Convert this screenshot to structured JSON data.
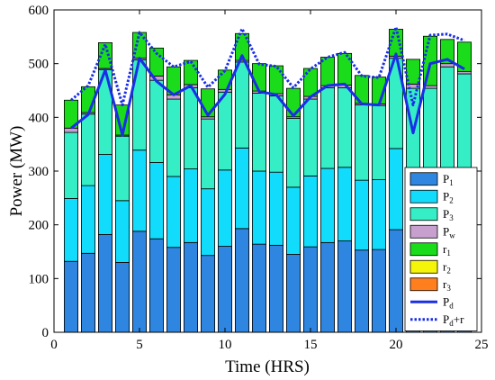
{
  "chart_data": {
    "type": "bar",
    "stacked": true,
    "xlabel": "Time (HRS)",
    "ylabel": "Power (MW)",
    "xlim": [
      0,
      25
    ],
    "ylim": [
      0,
      600
    ],
    "xticks": [
      0,
      5,
      10,
      15,
      20,
      25
    ],
    "yticks": [
      0,
      100,
      200,
      300,
      400,
      500,
      600
    ],
    "grid": false,
    "legend_position": "lower-right",
    "x": [
      1,
      2,
      3,
      4,
      5,
      6,
      7,
      8,
      9,
      10,
      11,
      12,
      13,
      14,
      15,
      16,
      17,
      18,
      19,
      20,
      21,
      22,
      23,
      24
    ],
    "series": [
      {
        "name": "P",
        "sub": "1",
        "kind": "bar",
        "color": "#2f86e0",
        "values": [
          132,
          147,
          182,
          130,
          188,
          174,
          158,
          167,
          143,
          160,
          193,
          164,
          162,
          145,
          159,
          167,
          170,
          153,
          154,
          191,
          160,
          164,
          160,
          160
        ]
      },
      {
        "name": "P",
        "sub": "2",
        "kind": "bar",
        "color": "#12dcfc",
        "values": [
          117,
          126,
          149,
          115,
          151,
          142,
          132,
          137,
          124,
          142,
          150,
          136,
          136,
          125,
          132,
          138,
          137,
          130,
          130,
          151,
          141,
          140,
          139,
          138
        ]
      },
      {
        "name": "P",
        "sub": "3",
        "kind": "bar",
        "color": "#36eec6",
        "values": [
          123,
          133,
          158,
          120,
          168,
          153,
          144,
          151,
          130,
          145,
          160,
          145,
          142,
          128,
          143,
          150,
          148,
          140,
          138,
          168,
          153,
          150,
          195,
          183
        ]
      },
      {
        "name": "P",
        "sub": "w",
        "kind": "bar",
        "color": "#c8a0d0",
        "values": [
          8,
          3,
          2,
          2,
          3,
          8,
          8,
          6,
          4,
          5,
          3,
          4,
          4,
          3,
          5,
          4,
          5,
          3,
          3,
          4,
          8,
          5,
          6,
          4
        ]
      },
      {
        "name": "r",
        "sub": "1",
        "kind": "bar",
        "color": "#1adc1a",
        "values": [
          52,
          48,
          48,
          56,
          48,
          52,
          52,
          45,
          52,
          36,
          50,
          51,
          52,
          53,
          52,
          53,
          59,
          52,
          50,
          50,
          46,
          92,
          45,
          55
        ]
      },
      {
        "name": "r",
        "sub": "2",
        "kind": "bar",
        "color": "#f5f50a",
        "values": [
          0,
          0,
          0,
          0,
          0,
          0,
          0,
          0,
          0,
          0,
          0,
          0,
          0,
          0,
          0,
          0,
          0,
          0,
          0,
          0,
          0,
          0,
          0,
          0
        ]
      },
      {
        "name": "r",
        "sub": "3",
        "kind": "bar",
        "color": "#ff7f1e",
        "values": [
          0,
          0,
          0,
          0,
          0,
          0,
          0,
          0,
          0,
          0,
          0,
          0,
          0,
          0,
          0,
          0,
          0,
          0,
          0,
          0,
          0,
          0,
          0,
          0
        ]
      },
      {
        "name": "P",
        "sub": "d",
        "kind": "line",
        "color": "#1a2ee6",
        "values": [
          380,
          405,
          488,
          367,
          510,
          467,
          442,
          459,
          404,
          443,
          515,
          448,
          442,
          403,
          438,
          459,
          462,
          425,
          423,
          518,
          371,
          500,
          508,
          490
        ]
      },
      {
        "name": "P",
        "sub": "d",
        "suffix": "+r",
        "kind": "dotted-line",
        "color": "#1a2ee6",
        "values": [
          432,
          459,
          536,
          423,
          558,
          519,
          494,
          504,
          456,
          487,
          565,
          499,
          495,
          455,
          490,
          512,
          521,
          477,
          474,
          568,
          423,
          553,
          555,
          543
        ]
      }
    ]
  }
}
